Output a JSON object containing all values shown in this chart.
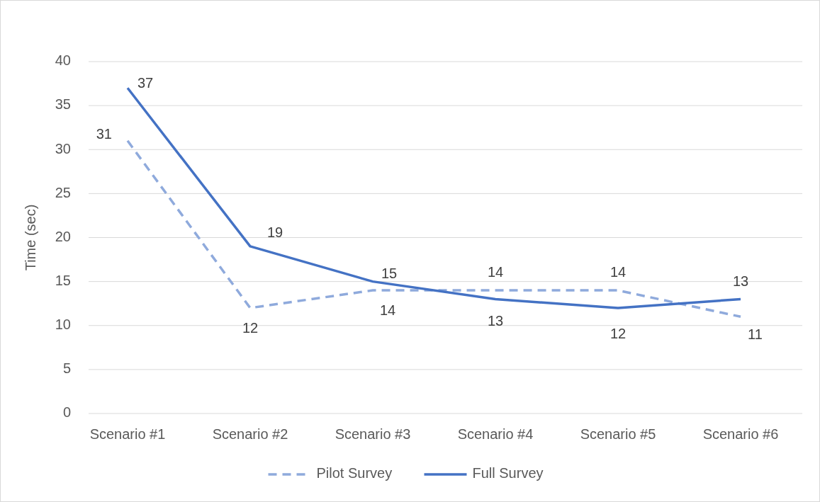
{
  "chart_data": {
    "type": "line",
    "ylabel": "Time (sec)",
    "categories": [
      "Scenario #1",
      "Scenario #2",
      "Scenario #3",
      "Scenario #4",
      "Scenario #5",
      "Scenario #6"
    ],
    "series": [
      {
        "name": "Pilot Survey",
        "color": "#8faadc",
        "line_style": "dashed",
        "values": [
          31,
          12,
          14,
          14,
          14,
          11
        ]
      },
      {
        "name": "Full Survey",
        "color": "#4472c4",
        "line_style": "solid",
        "values": [
          37,
          19,
          15,
          13,
          12,
          13
        ]
      }
    ],
    "ylim": [
      0,
      40
    ],
    "yticks": [
      0,
      5,
      10,
      15,
      20,
      25,
      30,
      35,
      40
    ],
    "grid": "y",
    "legend": "bottom",
    "data_labels": true,
    "marker": "none"
  }
}
